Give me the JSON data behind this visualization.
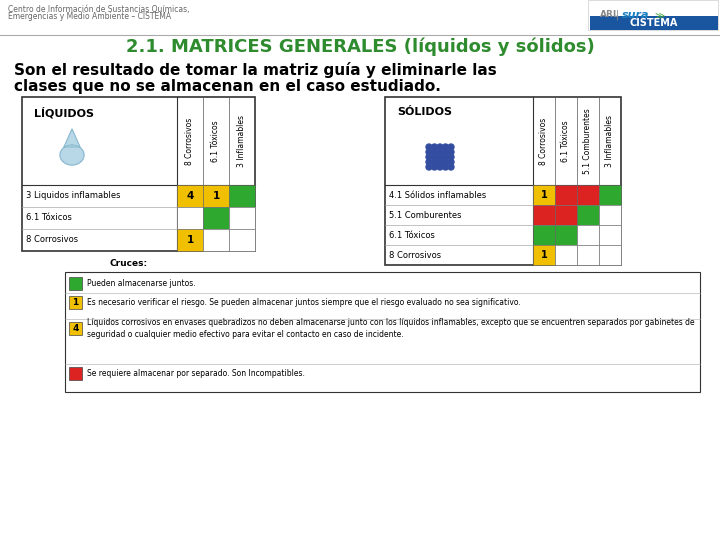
{
  "title": "2.1. MATRICES GENERALES (líquidos y sólidos)",
  "subtitle_line1": "Son el resultado de tomar la matriz guía y eliminarle las",
  "subtitle_line2": "clases que no se almacenan en el caso estudiado.",
  "header_small": "Centro de Información de Sustancias Químicas,\nEmergencias y Medio Ambiente – CISTEMA",
  "bg_color": "#ffffff",
  "title_color": "#2e8b2e",
  "subtitle_color": "#000000",
  "liquid_label": "LÍQUIDOS",
  "solid_label": "SÓLIDOS",
  "liquid_cols": [
    "8 Corrosivos",
    "6.1 Tóxicos",
    "3 Inflamables"
  ],
  "liquid_rows": [
    "3 Liquidos inflamables",
    "6.1 Tóxicos",
    "8 Corrosivos"
  ],
  "liquid_cells": [
    [
      {
        "val": "4",
        "color": "#f0c000"
      },
      {
        "val": "1",
        "color": "#f0c000"
      },
      {
        "val": "",
        "color": "#2ea82e"
      }
    ],
    [
      {
        "val": "",
        "color": "#ffffff"
      },
      {
        "val": "",
        "color": "#2ea82e"
      },
      {
        "val": "",
        "color": "#ffffff"
      }
    ],
    [
      {
        "val": "1",
        "color": "#f0c000"
      },
      {
        "val": "",
        "color": "#ffffff"
      },
      {
        "val": "",
        "color": "#ffffff"
      }
    ]
  ],
  "solid_cols": [
    "8 Corrosivos",
    "6.1 Tóxicos",
    "5.1 Comburentes",
    "3 Inflamables"
  ],
  "solid_rows": [
    "4.1 Sólidos inflamables",
    "5.1 Comburentes",
    "6.1 Tóxicos",
    "8 Corrosivos"
  ],
  "solid_cells": [
    [
      {
        "val": "1",
        "color": "#f0c000"
      },
      {
        "val": "",
        "color": "#dd2222"
      },
      {
        "val": "",
        "color": "#dd2222"
      },
      {
        "val": "",
        "color": "#2ea82e"
      }
    ],
    [
      {
        "val": "",
        "color": "#dd2222"
      },
      {
        "val": "",
        "color": "#dd2222"
      },
      {
        "val": "",
        "color": "#2ea82e"
      },
      {
        "val": "",
        "color": "#ffffff"
      }
    ],
    [
      {
        "val": "",
        "color": "#2ea82e"
      },
      {
        "val": "",
        "color": "#2ea82e"
      },
      {
        "val": "",
        "color": "#ffffff"
      },
      {
        "val": "",
        "color": "#ffffff"
      }
    ],
    [
      {
        "val": "1",
        "color": "#f0c000"
      },
      {
        "val": "",
        "color": "#ffffff"
      },
      {
        "val": "",
        "color": "#ffffff"
      },
      {
        "val": "",
        "color": "#ffffff"
      }
    ]
  ],
  "legend_items": [
    {
      "color": "#2ea82e",
      "val": "",
      "text": "Pueden almacenarse juntos."
    },
    {
      "color": "#f0c000",
      "val": "1",
      "text": "Es necesario verificar el riesgo. Se pueden almacenar juntos siempre que el riesgo evaluado no sea significativo."
    },
    {
      "color": "#f0c000",
      "val": "4",
      "text": "Líquidos corrosivos en envases quebradizos no deben almacenarse junto con los líquidos inflamables, excepto que se encuentren separados por gabinetes de seguridad o cualquier medio efectivo para evitar el contacto en caso de incidente."
    },
    {
      "color": "#dd2222",
      "val": "",
      "text": "Se requiere almacenar por separado. Son Incompatibles."
    }
  ],
  "cruces_title": "Cruces:"
}
